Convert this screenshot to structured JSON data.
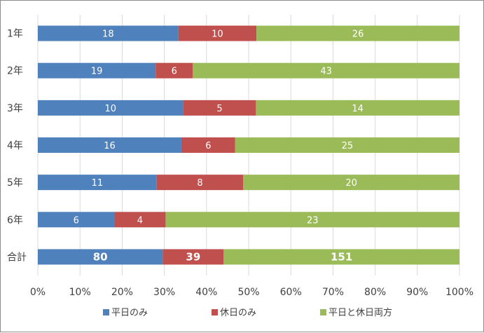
{
  "chart_data": {
    "type": "bar",
    "orientation": "horizontal",
    "stacked": "percent",
    "categories": [
      "1年",
      "2年",
      "3年",
      "4年",
      "5年",
      "6年",
      "合計"
    ],
    "series": [
      {
        "name": "平日のみ",
        "color": "#4f81bd",
        "values": [
          18,
          19,
          10,
          16,
          11,
          6,
          80
        ]
      },
      {
        "name": "休日のみ",
        "color": "#c0504d",
        "values": [
          10,
          6,
          5,
          6,
          8,
          4,
          39
        ]
      },
      {
        "name": "平日と休日両方",
        "color": "#9bbb59",
        "values": [
          26,
          43,
          14,
          25,
          20,
          23,
          151
        ]
      }
    ],
    "bold_categories": [
      "合計"
    ],
    "x_ticks": [
      "0%",
      "10%",
      "20%",
      "30%",
      "40%",
      "50%",
      "60%",
      "70%",
      "80%",
      "90%",
      "100%"
    ],
    "xlim": [
      0,
      100
    ],
    "grid": true,
    "legend_position": "bottom"
  }
}
